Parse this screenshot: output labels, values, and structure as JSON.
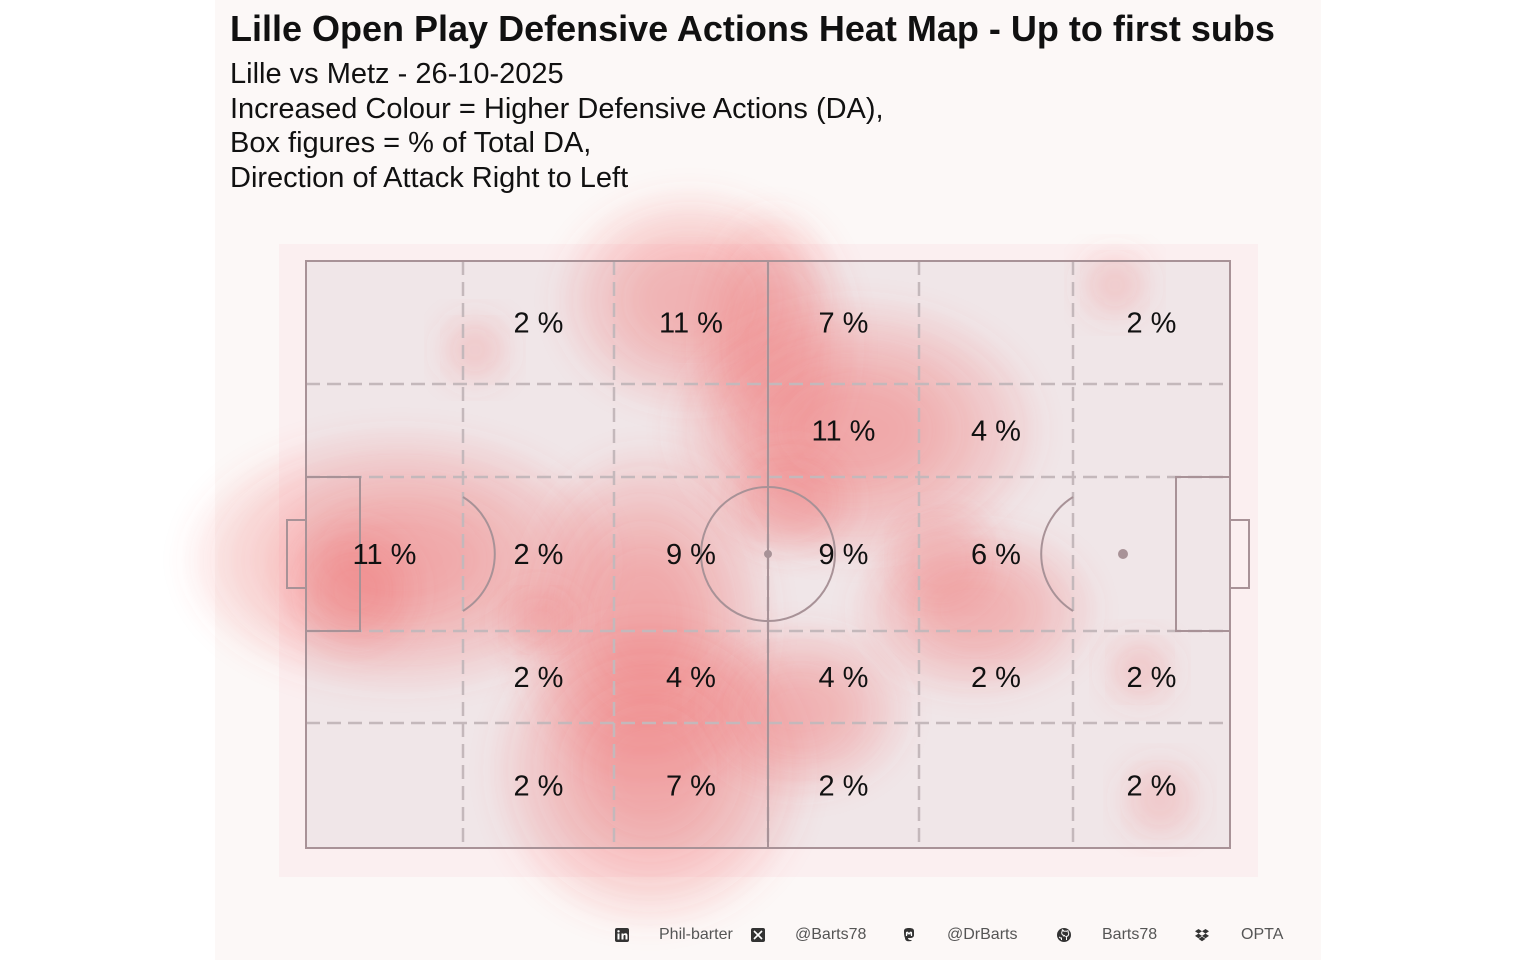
{
  "colors": {
    "panel_background": "#fcf8f7",
    "pitch_fill": "#f0e6e8",
    "pitch_lines": "#a89297",
    "zone_lines": "#c4b8bb",
    "heat": "#ec5e5e",
    "text": "#111111",
    "footer_text": "#555555"
  },
  "header": {
    "title": "Lille Open Play Defensive Actions Heat Map - Up to first subs",
    "subtitle_lines": [
      "Lille vs Metz - 26-10-2025",
      "Increased Colour = Higher Defensive Actions (DA),",
      "Box figures = % of Total DA,",
      "Direction of Attack Right to Left"
    ]
  },
  "chart_data": {
    "type": "heatmap",
    "title": "Lille Open Play Defensive Actions Heat Map - Up to first subs",
    "units": "% of Total DA",
    "direction_of_attack": "Right to Left",
    "columns": 6,
    "rows": 5,
    "zone_percentages": [
      [
        "",
        "2 %",
        "11 %",
        "7 %",
        "",
        "2 %"
      ],
      [
        "",
        "",
        "",
        "11 %",
        "4 %",
        ""
      ],
      [
        "11 %",
        "2 %",
        "9 %",
        "9 %",
        "6 %",
        ""
      ],
      [
        "",
        "2 %",
        "4 %",
        "4 %",
        "2 %",
        "2 %"
      ],
      [
        "",
        "2 %",
        "7 %",
        "2 %",
        "",
        "2 %"
      ]
    ]
  },
  "footer": {
    "items": [
      {
        "icon": "linkedin-icon",
        "label": "Phil-barter"
      },
      {
        "icon": "x-twitter-icon",
        "label": "@Barts78"
      },
      {
        "icon": "mastodon-icon",
        "label": "@DrBarts"
      },
      {
        "icon": "github-icon",
        "label": "Barts78"
      },
      {
        "icon": "dropbox-icon",
        "label": "OPTA"
      }
    ]
  }
}
